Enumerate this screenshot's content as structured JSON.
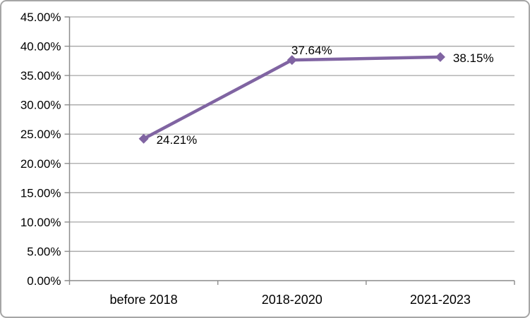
{
  "chart_data": {
    "type": "line",
    "title": "",
    "xlabel": "",
    "ylabel": "",
    "categories": [
      "before 2018",
      "2018-2020",
      "2021-2023"
    ],
    "series": [
      {
        "name": "",
        "values": [
          24.21,
          37.64,
          38.15
        ],
        "color": "#8064A2"
      }
    ],
    "data_labels": [
      {
        "text": "24.21%",
        "position": "right"
      },
      {
        "text": "37.64%",
        "position": "above"
      },
      {
        "text": "38.15%",
        "position": "right"
      }
    ],
    "y_axis": {
      "min": 0,
      "max": 45,
      "step": 5,
      "tick_labels": [
        "0.00%",
        "5.00%",
        "10.00%",
        "15.00%",
        "20.00%",
        "25.00%",
        "30.00%",
        "35.00%",
        "40.00%",
        "45.00%"
      ]
    },
    "grid": true,
    "legend": "none",
    "marker": "diamond",
    "colors": {
      "line": "#8064A2",
      "marker": "#8064A2",
      "gridline": "#a6a6a6",
      "axis": "#8c8c8c",
      "text": "#000000",
      "background": "#ffffff",
      "border": "#a6a6a6"
    }
  }
}
